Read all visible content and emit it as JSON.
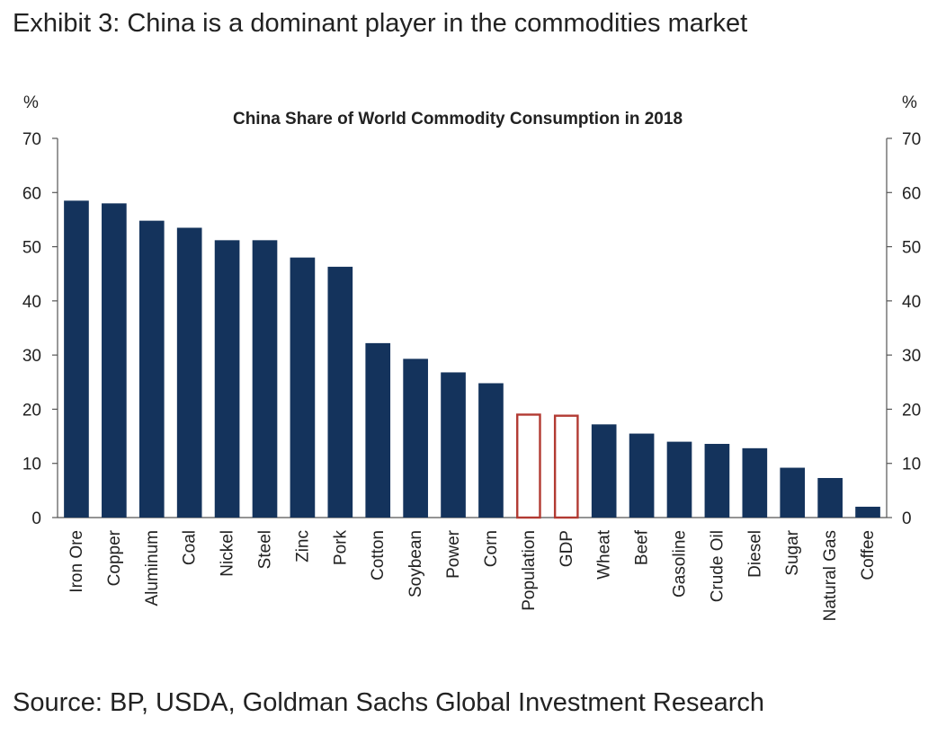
{
  "exhibit_title": "Exhibit 3: China is a dominant player in the commodities market",
  "source": "Source: BP, USDA, Goldman Sachs Global Investment Research",
  "chart_data": {
    "type": "bar",
    "title": "China Share of World Commodity Consumption in 2018",
    "ylabel_left": "%",
    "ylabel_right": "%",
    "ylim": [
      0,
      70
    ],
    "yticks": [
      0,
      10,
      20,
      30,
      40,
      50,
      60,
      70
    ],
    "grid": false,
    "legend": "none",
    "categories": [
      "Iron Ore",
      "Copper",
      "Aluminum",
      "Coal",
      "Nickel",
      "Steel",
      "Zinc",
      "Pork",
      "Cotton",
      "Soybean",
      "Power",
      "Corn",
      "Population",
      "GDP",
      "Wheat",
      "Beef",
      "Gasoline",
      "Crude Oil",
      "Diesel",
      "Sugar",
      "Natural Gas",
      "Coffee"
    ],
    "values": [
      58.5,
      58,
      54.8,
      53.5,
      51.2,
      51.2,
      48,
      46.3,
      32.2,
      29.3,
      26.8,
      24.8,
      19,
      18.8,
      17.2,
      15.5,
      14,
      13.6,
      12.8,
      9.2,
      7.3,
      2
    ],
    "highlight_categories": [
      "Population",
      "GDP"
    ],
    "colors": {
      "bar": "#14335c",
      "highlight_outline": "#b23a32",
      "axis": "#555555"
    }
  }
}
